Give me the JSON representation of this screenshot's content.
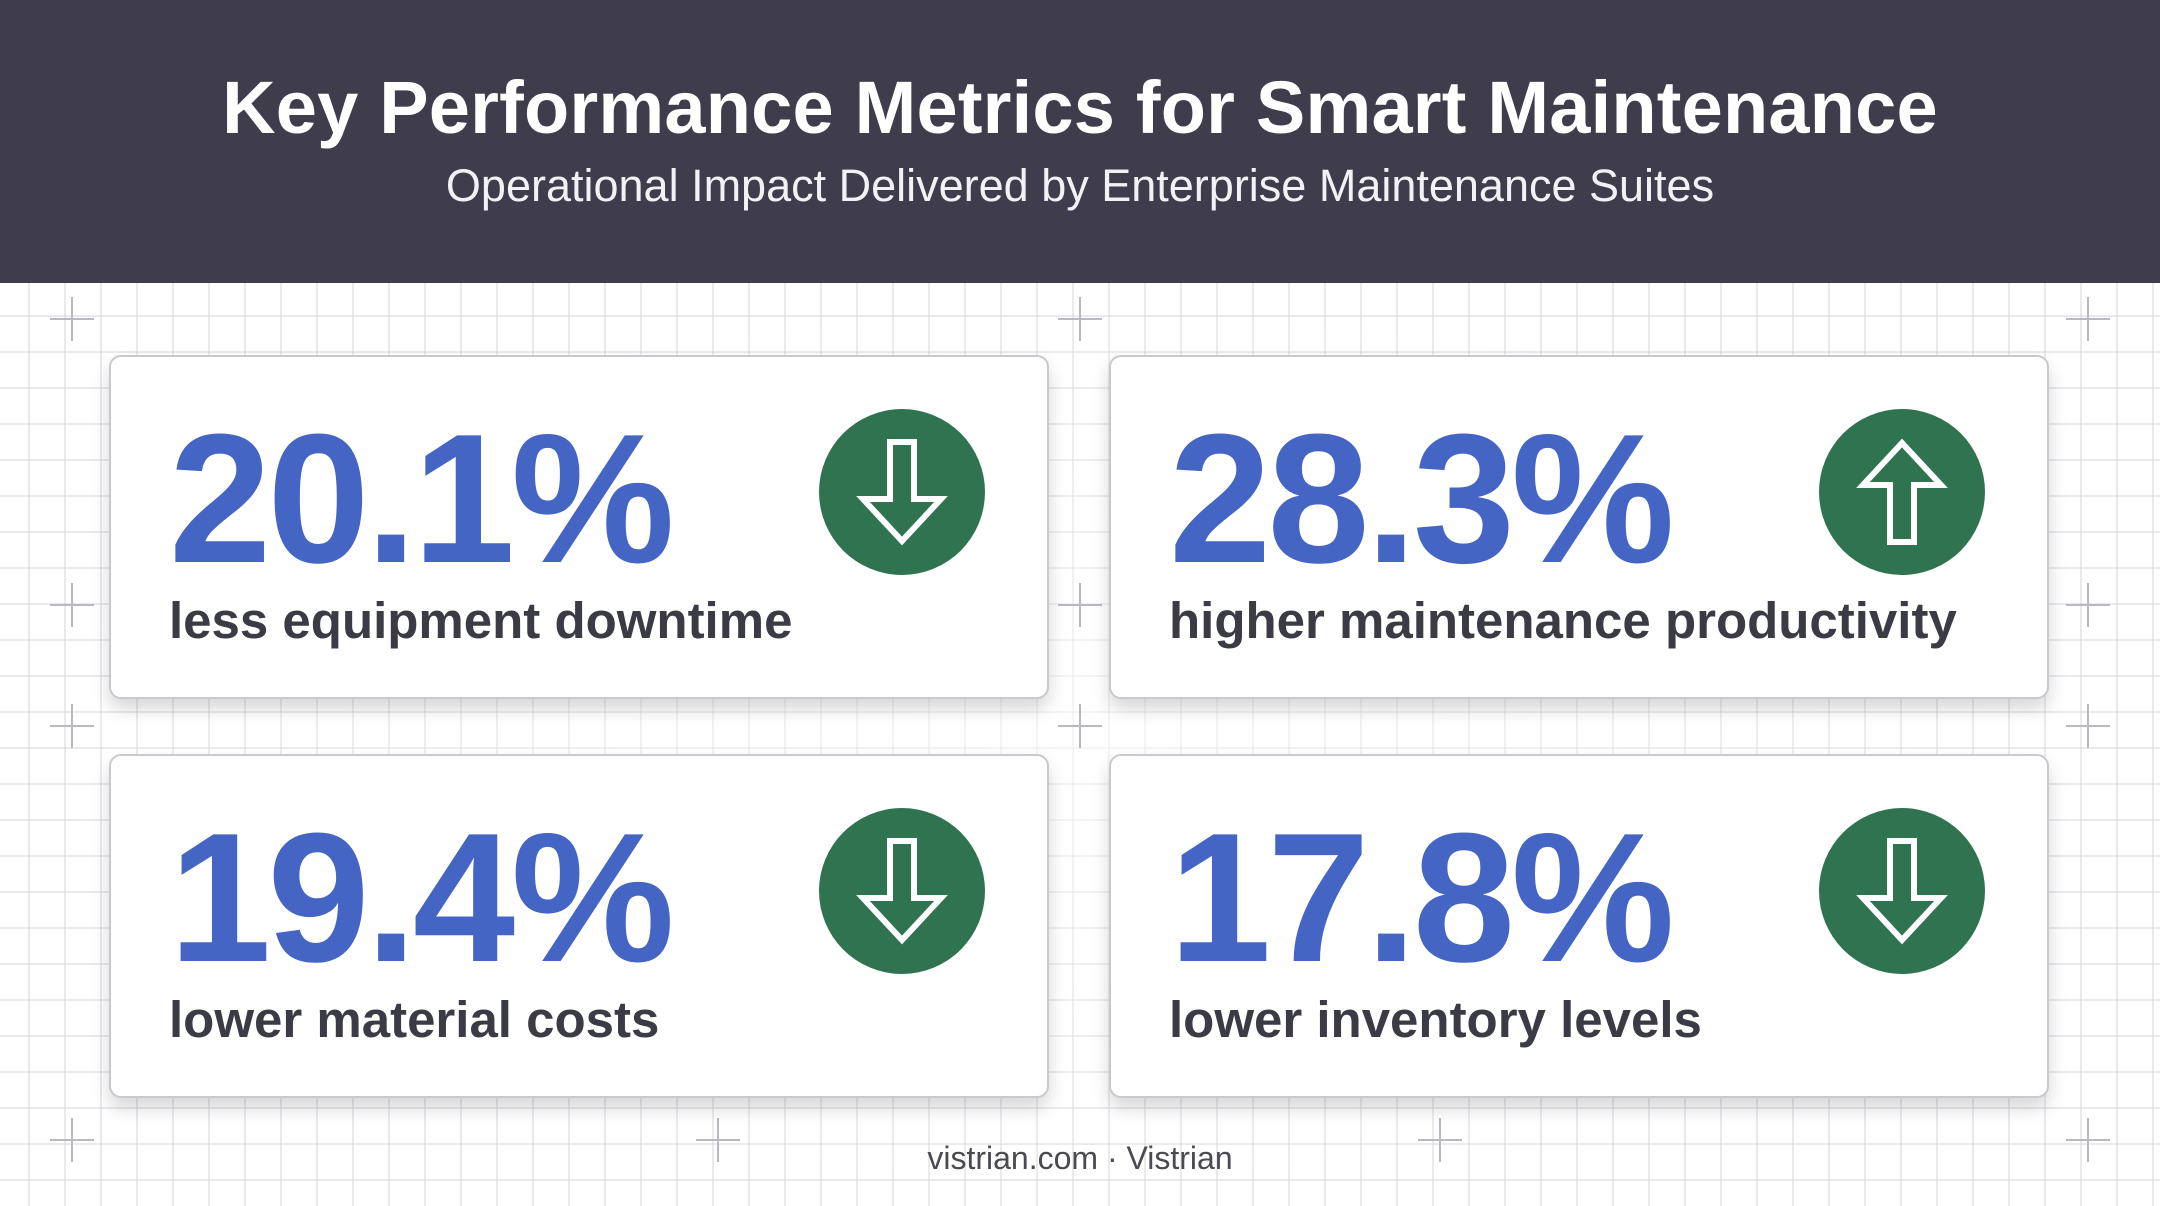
{
  "header": {
    "title": "Key Performance Metrics for Smart Maintenance",
    "subtitle": "Operational Impact Delivered by Enterprise Maintenance Suites"
  },
  "metrics": [
    {
      "value": "20.1%",
      "label": "less equipment downtime",
      "direction": "down",
      "icon": "arrow-down-icon"
    },
    {
      "value": "28.3%",
      "label": "higher maintenance productivity",
      "direction": "up",
      "icon": "arrow-up-icon"
    },
    {
      "value": "19.4%",
      "label": "lower material costs",
      "direction": "down",
      "icon": "arrow-down-icon"
    },
    {
      "value": "17.8%",
      "label": "lower inventory levels",
      "direction": "down",
      "icon": "arrow-down-icon"
    }
  ],
  "footer": {
    "text": "vistrian.com · Vistrian"
  },
  "colors": {
    "header_bg": "#3f3d4b",
    "value_blue": "#4565c4",
    "icon_green": "#2f7350",
    "label_text": "#3b3b45"
  }
}
